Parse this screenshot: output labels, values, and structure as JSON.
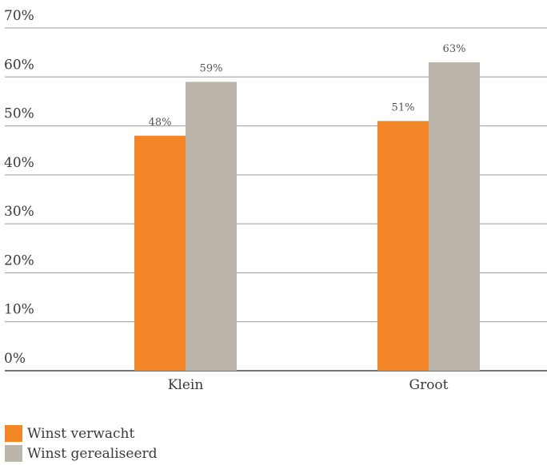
{
  "chart_data": {
    "type": "bar",
    "categories": [
      "Klein",
      "Groot"
    ],
    "series": [
      {
        "name": "Winst verwacht",
        "values": [
          48,
          51
        ],
        "color": "#f28526",
        "labels": [
          "48%",
          "51%"
        ]
      },
      {
        "name": "Winst gerealiseerd",
        "values": [
          59,
          63
        ],
        "color": "#bcb5ab",
        "labels": [
          "59%",
          "63%"
        ]
      }
    ],
    "yticks": [
      0,
      10,
      20,
      30,
      40,
      50,
      60,
      70
    ],
    "ytick_labels": [
      "0%",
      "10%",
      "20%",
      "30%",
      "40%",
      "50%",
      "60%",
      "70%"
    ],
    "ylim": [
      0,
      70
    ],
    "grid": true,
    "legend_position": "bottom-left"
  },
  "legend": {
    "items": [
      {
        "label": "Winst verwacht",
        "color": "#f28526"
      },
      {
        "label": "Winst gerealiseerd",
        "color": "#bcb5ab"
      }
    ]
  }
}
